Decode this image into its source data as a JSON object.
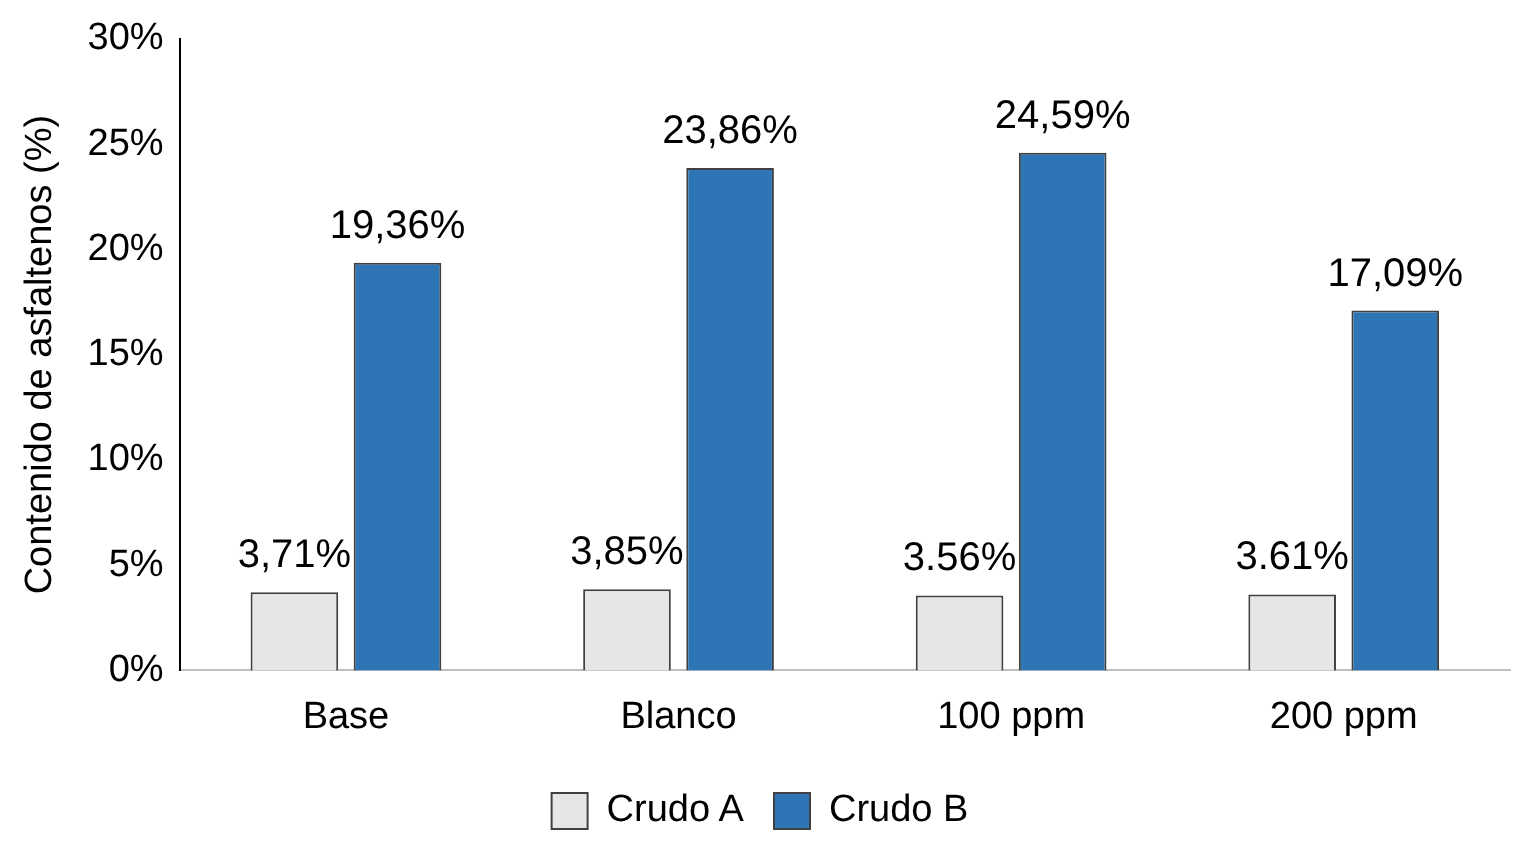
{
  "chart_data": {
    "type": "bar",
    "ylabel": "Contenido de asfaltenos (%)",
    "categories": [
      "Base",
      "Blanco",
      "100 ppm",
      "200 ppm"
    ],
    "series": [
      {
        "name": "Crudo A",
        "color": "#e7e6e6",
        "values": [
          3.71,
          3.85,
          3.56,
          3.61
        ],
        "value_labels": [
          "3,71%",
          "3,85%",
          "3.56%",
          "3.61%"
        ]
      },
      {
        "name": "Crudo B",
        "color": "#2e75b6",
        "values": [
          19.36,
          23.86,
          24.59,
          17.09
        ],
        "value_labels": [
          "19,36%",
          "23,86%",
          "24,59%",
          "17,09%"
        ]
      }
    ],
    "ylim": [
      0,
      30
    ],
    "yticks": [
      {
        "value": 0,
        "label": "0%"
      },
      {
        "value": 5,
        "label": "5%"
      },
      {
        "value": 10,
        "label": "10%"
      },
      {
        "value": 15,
        "label": "15%"
      },
      {
        "value": 20,
        "label": "20%"
      },
      {
        "value": 25,
        "label": "25%"
      },
      {
        "value": 30,
        "label": "30%"
      }
    ],
    "grid": false,
    "legend": "bottom"
  }
}
